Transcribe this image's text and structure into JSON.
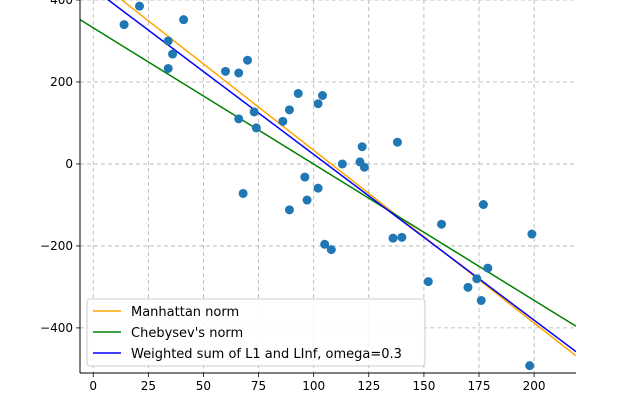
{
  "chart_data": {
    "type": "scatter",
    "title": "",
    "xlabel": "",
    "ylabel": "",
    "xlim": [
      -6,
      219
    ],
    "ylim": [
      -510,
      400
    ],
    "xticks": [
      0,
      25,
      50,
      75,
      100,
      125,
      150,
      175,
      200
    ],
    "yticks": [
      -400,
      -200,
      0,
      200,
      400
    ],
    "grid": true,
    "grid_style": "dashed",
    "legend_position": "lower-left",
    "point_color": "#1f77b4",
    "points": [
      {
        "x": 14,
        "y": 340
      },
      {
        "x": 21,
        "y": 385
      },
      {
        "x": 34,
        "y": 300
      },
      {
        "x": 36,
        "y": 268
      },
      {
        "x": 41,
        "y": 352
      },
      {
        "x": 34,
        "y": 233
      },
      {
        "x": 60,
        "y": 226
      },
      {
        "x": 66,
        "y": 222
      },
      {
        "x": 70,
        "y": 253
      },
      {
        "x": 66,
        "y": 110
      },
      {
        "x": 73,
        "y": 127
      },
      {
        "x": 74,
        "y": 88
      },
      {
        "x": 68,
        "y": -72
      },
      {
        "x": 86,
        "y": 104
      },
      {
        "x": 89,
        "y": 132
      },
      {
        "x": 93,
        "y": 172
      },
      {
        "x": 102,
        "y": 147
      },
      {
        "x": 104,
        "y": 167
      },
      {
        "x": 89,
        "y": -112
      },
      {
        "x": 96,
        "y": -32
      },
      {
        "x": 97,
        "y": -88
      },
      {
        "x": 102,
        "y": -59
      },
      {
        "x": 105,
        "y": -196
      },
      {
        "x": 108,
        "y": -209
      },
      {
        "x": 113,
        "y": 0
      },
      {
        "x": 121,
        "y": 5
      },
      {
        "x": 122,
        "y": 42
      },
      {
        "x": 123,
        "y": -8
      },
      {
        "x": 136,
        "y": -181
      },
      {
        "x": 138,
        "y": 53
      },
      {
        "x": 140,
        "y": -179
      },
      {
        "x": 152,
        "y": -287
      },
      {
        "x": 158,
        "y": -147
      },
      {
        "x": 170,
        "y": -301
      },
      {
        "x": 174,
        "y": -280
      },
      {
        "x": 176,
        "y": -333
      },
      {
        "x": 177,
        "y": -99
      },
      {
        "x": 179,
        "y": -254
      },
      {
        "x": 198,
        "y": -492
      },
      {
        "x": 199,
        "y": -171
      }
    ],
    "lines": [
      {
        "name": "Manhattan norm",
        "color": "#ffa500",
        "x": [
          -6,
          219
        ],
        "y": [
          480,
          -468
        ]
      },
      {
        "name": "Chebysev's norm",
        "color": "#008000",
        "x": [
          -6,
          219
        ],
        "y": [
          352,
          -396
        ]
      },
      {
        "name": "Weighted sum of L1 and LInf, omega=0.3",
        "color": "#0000ff",
        "x": [
          -6,
          219
        ],
        "y": [
          452,
          -458
        ]
      }
    ]
  }
}
